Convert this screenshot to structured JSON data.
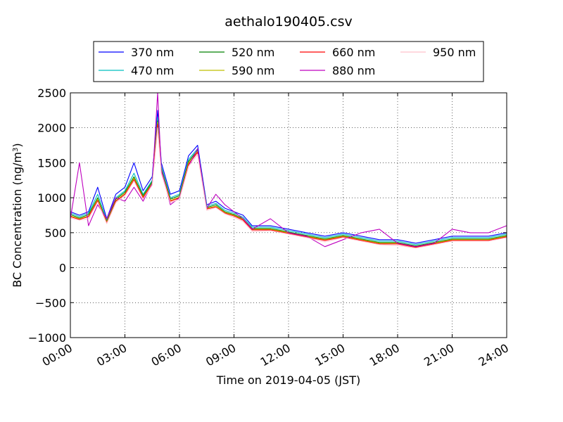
{
  "chart_data": {
    "type": "line",
    "title": "aethalo190405.csv",
    "xlabel": "Time on 2019-04-05 (JST)",
    "ylabel_main": "BC Concentration (ng/m",
    "ylabel_sup": "3",
    "ylabel_close": ")",
    "xlim": [
      0,
      24
    ],
    "ylim": [
      -1000,
      2500
    ],
    "xticks": [
      0,
      3,
      6,
      9,
      12,
      15,
      18,
      21,
      24
    ],
    "xtick_labels": [
      "00:00",
      "03:00",
      "06:00",
      "09:00",
      "12:00",
      "15:00",
      "18:00",
      "21:00",
      "24:00"
    ],
    "yticks": [
      -1000,
      -500,
      0,
      500,
      1000,
      1500,
      2000,
      2500
    ],
    "ytick_labels": [
      "−1000",
      "−500",
      "0",
      "500",
      "1000",
      "1500",
      "2000",
      "2500"
    ],
    "grid": true,
    "legend_position": "top",
    "series": [
      {
        "name": "370 nm",
        "color": "#0000ff",
        "x": [
          0,
          0.5,
          1,
          1.5,
          2,
          2.5,
          3,
          3.5,
          4,
          4.5,
          4.8,
          5,
          5.5,
          6,
          6.5,
          7,
          7.5,
          8,
          8.5,
          9,
          9.5,
          10,
          11,
          12,
          13,
          14,
          15,
          16,
          17,
          18,
          19,
          20,
          21,
          22,
          23,
          24
        ],
        "y": [
          800,
          750,
          800,
          1150,
          700,
          1050,
          1150,
          1500,
          1100,
          1300,
          2250,
          1500,
          1050,
          1100,
          1600,
          1750,
          900,
          950,
          850,
          800,
          750,
          600,
          600,
          550,
          500,
          450,
          500,
          450,
          400,
          400,
          350,
          400,
          450,
          450,
          450,
          500
        ]
      },
      {
        "name": "470 nm",
        "color": "#00bfbf",
        "x": [
          0,
          0.5,
          1,
          1.5,
          2,
          2.5,
          3,
          3.5,
          4,
          4.5,
          4.8,
          5,
          5.5,
          6,
          6.5,
          7,
          7.5,
          8,
          8.5,
          9,
          9.5,
          10,
          11,
          12,
          13,
          14,
          15,
          16,
          17,
          18,
          19,
          20,
          21,
          22,
          23,
          24
        ],
        "y": [
          780,
          730,
          780,
          1050,
          680,
          1000,
          1100,
          1350,
          1050,
          1250,
          2150,
          1450,
          1000,
          1050,
          1550,
          1700,
          880,
          920,
          820,
          780,
          720,
          580,
          580,
          530,
          480,
          430,
          480,
          430,
          380,
          380,
          330,
          380,
          430,
          430,
          430,
          480
        ]
      },
      {
        "name": "520 nm",
        "color": "#008000",
        "x": [
          0,
          0.5,
          1,
          1.5,
          2,
          2.5,
          3,
          3.5,
          4,
          4.5,
          4.8,
          5,
          5.5,
          6,
          6.5,
          7,
          7.5,
          8,
          8.5,
          9,
          9.5,
          10,
          11,
          12,
          13,
          14,
          15,
          16,
          17,
          18,
          19,
          20,
          21,
          22,
          23,
          24
        ],
        "y": [
          760,
          710,
          760,
          1000,
          660,
          980,
          1080,
          1300,
          1030,
          1230,
          2100,
          1420,
          980,
          1030,
          1520,
          1680,
          860,
          900,
          800,
          760,
          700,
          560,
          560,
          510,
          460,
          410,
          460,
          410,
          360,
          360,
          310,
          360,
          410,
          410,
          410,
          460
        ]
      },
      {
        "name": "590 nm",
        "color": "#bfbf00",
        "x": [
          0,
          0.5,
          1,
          1.5,
          2,
          2.5,
          3,
          3.5,
          4,
          4.5,
          4.8,
          5,
          5.5,
          6,
          6.5,
          7,
          7.5,
          8,
          8.5,
          9,
          9.5,
          10,
          11,
          12,
          13,
          14,
          15,
          16,
          17,
          18,
          19,
          20,
          21,
          22,
          23,
          24
        ],
        "y": [
          740,
          700,
          740,
          980,
          650,
          960,
          1060,
          1280,
          1010,
          1210,
          2080,
          1400,
          960,
          1010,
          1500,
          1660,
          850,
          880,
          790,
          750,
          690,
          550,
          550,
          500,
          450,
          400,
          450,
          400,
          350,
          350,
          300,
          350,
          400,
          400,
          400,
          450
        ]
      },
      {
        "name": "660 nm",
        "color": "#ff0000",
        "x": [
          0,
          0.5,
          1,
          1.5,
          2,
          2.5,
          3,
          3.5,
          4,
          4.5,
          4.8,
          5,
          5.5,
          6,
          6.5,
          7,
          7.5,
          8,
          8.5,
          9,
          9.5,
          10,
          11,
          12,
          13,
          14,
          15,
          16,
          17,
          18,
          19,
          20,
          21,
          22,
          23,
          24
        ],
        "y": [
          730,
          690,
          730,
          960,
          640,
          950,
          1050,
          1260,
          1000,
          1200,
          2050,
          1380,
          950,
          1000,
          1480,
          1650,
          840,
          870,
          780,
          740,
          680,
          540,
          540,
          490,
          440,
          390,
          440,
          390,
          340,
          340,
          290,
          340,
          390,
          390,
          390,
          440
        ]
      },
      {
        "name": "880 nm",
        "color": "#bf00bf",
        "x": [
          0,
          0.5,
          1,
          1.5,
          2,
          2.5,
          3,
          3.5,
          4,
          4.5,
          4.8,
          5,
          5.5,
          6,
          6.5,
          7,
          7.5,
          8,
          8.5,
          9,
          9.5,
          10,
          11,
          12,
          13,
          14,
          15,
          16,
          17,
          18,
          19,
          20,
          21,
          22,
          23,
          24
        ],
        "y": [
          700,
          1500,
          600,
          900,
          700,
          1000,
          950,
          1150,
          950,
          1200,
          2500,
          1400,
          900,
          1000,
          1450,
          1700,
          850,
          1050,
          900,
          800,
          700,
          550,
          700,
          500,
          450,
          300,
          400,
          500,
          550,
          350,
          300,
          350,
          550,
          500,
          500,
          600
        ]
      },
      {
        "name": "950 nm",
        "color": "#ffc0cb",
        "x": [
          0,
          0.5,
          1,
          1.5,
          2,
          2.5,
          3,
          3.5,
          4,
          4.5,
          4.8,
          5,
          5.5,
          6,
          6.5,
          7,
          7.5,
          8,
          8.5,
          9,
          9.5,
          10,
          11,
          12,
          13,
          14,
          15,
          16,
          17,
          18,
          19,
          20,
          21,
          22,
          23,
          24
        ],
        "y": [
          710,
          680,
          700,
          940,
          630,
          930,
          1030,
          1240,
          980,
          1180,
          2000,
          1350,
          930,
          980,
          1450,
          1620,
          820,
          860,
          770,
          720,
          660,
          520,
          530,
          480,
          430,
          370,
          430,
          380,
          330,
          320,
          280,
          330,
          380,
          380,
          380,
          430
        ]
      }
    ]
  }
}
